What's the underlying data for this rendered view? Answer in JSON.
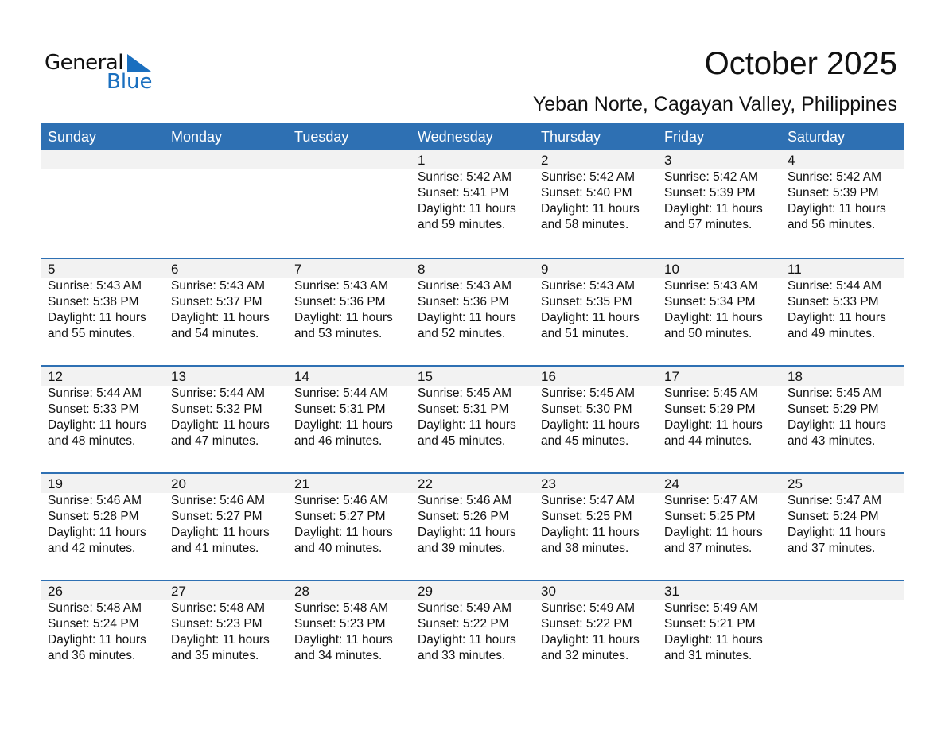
{
  "logo": {
    "line1": "General",
    "line2": "Blue",
    "accent": "#1a6fbf"
  },
  "title": "October 2025",
  "subtitle": "Yeban Norte, Cagayan Valley, Philippines",
  "header_color": "#2e70b3",
  "days": [
    "Sunday",
    "Monday",
    "Tuesday",
    "Wednesday",
    "Thursday",
    "Friday",
    "Saturday"
  ],
  "weeks": [
    [
      null,
      null,
      null,
      {
        "day": "1",
        "sunrise": "Sunrise: 5:42 AM",
        "sunset": "Sunset: 5:41 PM",
        "daylight": "Daylight: 11 hours",
        "minutes": "and 59 minutes."
      },
      {
        "day": "2",
        "sunrise": "Sunrise: 5:42 AM",
        "sunset": "Sunset: 5:40 PM",
        "daylight": "Daylight: 11 hours",
        "minutes": "and 58 minutes."
      },
      {
        "day": "3",
        "sunrise": "Sunrise: 5:42 AM",
        "sunset": "Sunset: 5:39 PM",
        "daylight": "Daylight: 11 hours",
        "minutes": "and 57 minutes."
      },
      {
        "day": "4",
        "sunrise": "Sunrise: 5:42 AM",
        "sunset": "Sunset: 5:39 PM",
        "daylight": "Daylight: 11 hours",
        "minutes": "and 56 minutes."
      }
    ],
    [
      {
        "day": "5",
        "sunrise": "Sunrise: 5:43 AM",
        "sunset": "Sunset: 5:38 PM",
        "daylight": "Daylight: 11 hours",
        "minutes": "and 55 minutes."
      },
      {
        "day": "6",
        "sunrise": "Sunrise: 5:43 AM",
        "sunset": "Sunset: 5:37 PM",
        "daylight": "Daylight: 11 hours",
        "minutes": "and 54 minutes."
      },
      {
        "day": "7",
        "sunrise": "Sunrise: 5:43 AM",
        "sunset": "Sunset: 5:36 PM",
        "daylight": "Daylight: 11 hours",
        "minutes": "and 53 minutes."
      },
      {
        "day": "8",
        "sunrise": "Sunrise: 5:43 AM",
        "sunset": "Sunset: 5:36 PM",
        "daylight": "Daylight: 11 hours",
        "minutes": "and 52 minutes."
      },
      {
        "day": "9",
        "sunrise": "Sunrise: 5:43 AM",
        "sunset": "Sunset: 5:35 PM",
        "daylight": "Daylight: 11 hours",
        "minutes": "and 51 minutes."
      },
      {
        "day": "10",
        "sunrise": "Sunrise: 5:43 AM",
        "sunset": "Sunset: 5:34 PM",
        "daylight": "Daylight: 11 hours",
        "minutes": "and 50 minutes."
      },
      {
        "day": "11",
        "sunrise": "Sunrise: 5:44 AM",
        "sunset": "Sunset: 5:33 PM",
        "daylight": "Daylight: 11 hours",
        "minutes": "and 49 minutes."
      }
    ],
    [
      {
        "day": "12",
        "sunrise": "Sunrise: 5:44 AM",
        "sunset": "Sunset: 5:33 PM",
        "daylight": "Daylight: 11 hours",
        "minutes": "and 48 minutes."
      },
      {
        "day": "13",
        "sunrise": "Sunrise: 5:44 AM",
        "sunset": "Sunset: 5:32 PM",
        "daylight": "Daylight: 11 hours",
        "minutes": "and 47 minutes."
      },
      {
        "day": "14",
        "sunrise": "Sunrise: 5:44 AM",
        "sunset": "Sunset: 5:31 PM",
        "daylight": "Daylight: 11 hours",
        "minutes": "and 46 minutes."
      },
      {
        "day": "15",
        "sunrise": "Sunrise: 5:45 AM",
        "sunset": "Sunset: 5:31 PM",
        "daylight": "Daylight: 11 hours",
        "minutes": "and 45 minutes."
      },
      {
        "day": "16",
        "sunrise": "Sunrise: 5:45 AM",
        "sunset": "Sunset: 5:30 PM",
        "daylight": "Daylight: 11 hours",
        "minutes": "and 45 minutes."
      },
      {
        "day": "17",
        "sunrise": "Sunrise: 5:45 AM",
        "sunset": "Sunset: 5:29 PM",
        "daylight": "Daylight: 11 hours",
        "minutes": "and 44 minutes."
      },
      {
        "day": "18",
        "sunrise": "Sunrise: 5:45 AM",
        "sunset": "Sunset: 5:29 PM",
        "daylight": "Daylight: 11 hours",
        "minutes": "and 43 minutes."
      }
    ],
    [
      {
        "day": "19",
        "sunrise": "Sunrise: 5:46 AM",
        "sunset": "Sunset: 5:28 PM",
        "daylight": "Daylight: 11 hours",
        "minutes": "and 42 minutes."
      },
      {
        "day": "20",
        "sunrise": "Sunrise: 5:46 AM",
        "sunset": "Sunset: 5:27 PM",
        "daylight": "Daylight: 11 hours",
        "minutes": "and 41 minutes."
      },
      {
        "day": "21",
        "sunrise": "Sunrise: 5:46 AM",
        "sunset": "Sunset: 5:27 PM",
        "daylight": "Daylight: 11 hours",
        "minutes": "and 40 minutes."
      },
      {
        "day": "22",
        "sunrise": "Sunrise: 5:46 AM",
        "sunset": "Sunset: 5:26 PM",
        "daylight": "Daylight: 11 hours",
        "minutes": "and 39 minutes."
      },
      {
        "day": "23",
        "sunrise": "Sunrise: 5:47 AM",
        "sunset": "Sunset: 5:25 PM",
        "daylight": "Daylight: 11 hours",
        "minutes": "and 38 minutes."
      },
      {
        "day": "24",
        "sunrise": "Sunrise: 5:47 AM",
        "sunset": "Sunset: 5:25 PM",
        "daylight": "Daylight: 11 hours",
        "minutes": "and 37 minutes."
      },
      {
        "day": "25",
        "sunrise": "Sunrise: 5:47 AM",
        "sunset": "Sunset: 5:24 PM",
        "daylight": "Daylight: 11 hours",
        "minutes": "and 37 minutes."
      }
    ],
    [
      {
        "day": "26",
        "sunrise": "Sunrise: 5:48 AM",
        "sunset": "Sunset: 5:24 PM",
        "daylight": "Daylight: 11 hours",
        "minutes": "and 36 minutes."
      },
      {
        "day": "27",
        "sunrise": "Sunrise: 5:48 AM",
        "sunset": "Sunset: 5:23 PM",
        "daylight": "Daylight: 11 hours",
        "minutes": "and 35 minutes."
      },
      {
        "day": "28",
        "sunrise": "Sunrise: 5:48 AM",
        "sunset": "Sunset: 5:23 PM",
        "daylight": "Daylight: 11 hours",
        "minutes": "and 34 minutes."
      },
      {
        "day": "29",
        "sunrise": "Sunrise: 5:49 AM",
        "sunset": "Sunset: 5:22 PM",
        "daylight": "Daylight: 11 hours",
        "minutes": "and 33 minutes."
      },
      {
        "day": "30",
        "sunrise": "Sunrise: 5:49 AM",
        "sunset": "Sunset: 5:22 PM",
        "daylight": "Daylight: 11 hours",
        "minutes": "and 32 minutes."
      },
      {
        "day": "31",
        "sunrise": "Sunrise: 5:49 AM",
        "sunset": "Sunset: 5:21 PM",
        "daylight": "Daylight: 11 hours",
        "minutes": "and 31 minutes."
      },
      null
    ]
  ]
}
